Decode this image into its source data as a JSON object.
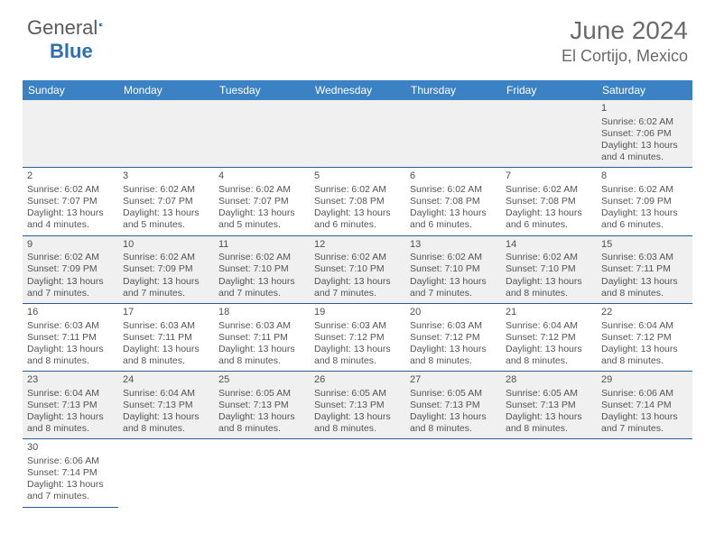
{
  "brand": {
    "part1": "General",
    "part2": "Blue"
  },
  "title": "June 2024",
  "location": "El Cortijo, Mexico",
  "colors": {
    "header_bg": "#3b82c4",
    "header_text": "#ffffff",
    "row_alt_bg": "#f0f0f0",
    "row_border": "#2a5a9a",
    "body_text": "#555555",
    "title_text": "#6a6a6a"
  },
  "weekdays": [
    "Sunday",
    "Monday",
    "Tuesday",
    "Wednesday",
    "Thursday",
    "Friday",
    "Saturday"
  ],
  "days": [
    {
      "n": 1,
      "sr": "6:02 AM",
      "ss": "7:06 PM",
      "dl": "13 hours and 4 minutes."
    },
    {
      "n": 2,
      "sr": "6:02 AM",
      "ss": "7:07 PM",
      "dl": "13 hours and 4 minutes."
    },
    {
      "n": 3,
      "sr": "6:02 AM",
      "ss": "7:07 PM",
      "dl": "13 hours and 5 minutes."
    },
    {
      "n": 4,
      "sr": "6:02 AM",
      "ss": "7:07 PM",
      "dl": "13 hours and 5 minutes."
    },
    {
      "n": 5,
      "sr": "6:02 AM",
      "ss": "7:08 PM",
      "dl": "13 hours and 6 minutes."
    },
    {
      "n": 6,
      "sr": "6:02 AM",
      "ss": "7:08 PM",
      "dl": "13 hours and 6 minutes."
    },
    {
      "n": 7,
      "sr": "6:02 AM",
      "ss": "7:08 PM",
      "dl": "13 hours and 6 minutes."
    },
    {
      "n": 8,
      "sr": "6:02 AM",
      "ss": "7:09 PM",
      "dl": "13 hours and 6 minutes."
    },
    {
      "n": 9,
      "sr": "6:02 AM",
      "ss": "7:09 PM",
      "dl": "13 hours and 7 minutes."
    },
    {
      "n": 10,
      "sr": "6:02 AM",
      "ss": "7:09 PM",
      "dl": "13 hours and 7 minutes."
    },
    {
      "n": 11,
      "sr": "6:02 AM",
      "ss": "7:10 PM",
      "dl": "13 hours and 7 minutes."
    },
    {
      "n": 12,
      "sr": "6:02 AM",
      "ss": "7:10 PM",
      "dl": "13 hours and 7 minutes."
    },
    {
      "n": 13,
      "sr": "6:02 AM",
      "ss": "7:10 PM",
      "dl": "13 hours and 7 minutes."
    },
    {
      "n": 14,
      "sr": "6:02 AM",
      "ss": "7:10 PM",
      "dl": "13 hours and 8 minutes."
    },
    {
      "n": 15,
      "sr": "6:03 AM",
      "ss": "7:11 PM",
      "dl": "13 hours and 8 minutes."
    },
    {
      "n": 16,
      "sr": "6:03 AM",
      "ss": "7:11 PM",
      "dl": "13 hours and 8 minutes."
    },
    {
      "n": 17,
      "sr": "6:03 AM",
      "ss": "7:11 PM",
      "dl": "13 hours and 8 minutes."
    },
    {
      "n": 18,
      "sr": "6:03 AM",
      "ss": "7:11 PM",
      "dl": "13 hours and 8 minutes."
    },
    {
      "n": 19,
      "sr": "6:03 AM",
      "ss": "7:12 PM",
      "dl": "13 hours and 8 minutes."
    },
    {
      "n": 20,
      "sr": "6:03 AM",
      "ss": "7:12 PM",
      "dl": "13 hours and 8 minutes."
    },
    {
      "n": 21,
      "sr": "6:04 AM",
      "ss": "7:12 PM",
      "dl": "13 hours and 8 minutes."
    },
    {
      "n": 22,
      "sr": "6:04 AM",
      "ss": "7:12 PM",
      "dl": "13 hours and 8 minutes."
    },
    {
      "n": 23,
      "sr": "6:04 AM",
      "ss": "7:13 PM",
      "dl": "13 hours and 8 minutes."
    },
    {
      "n": 24,
      "sr": "6:04 AM",
      "ss": "7:13 PM",
      "dl": "13 hours and 8 minutes."
    },
    {
      "n": 25,
      "sr": "6:05 AM",
      "ss": "7:13 PM",
      "dl": "13 hours and 8 minutes."
    },
    {
      "n": 26,
      "sr": "6:05 AM",
      "ss": "7:13 PM",
      "dl": "13 hours and 8 minutes."
    },
    {
      "n": 27,
      "sr": "6:05 AM",
      "ss": "7:13 PM",
      "dl": "13 hours and 8 minutes."
    },
    {
      "n": 28,
      "sr": "6:05 AM",
      "ss": "7:13 PM",
      "dl": "13 hours and 8 minutes."
    },
    {
      "n": 29,
      "sr": "6:06 AM",
      "ss": "7:14 PM",
      "dl": "13 hours and 7 minutes."
    },
    {
      "n": 30,
      "sr": "6:06 AM",
      "ss": "7:14 PM",
      "dl": "13 hours and 7 minutes."
    }
  ],
  "labels": {
    "sunrise": "Sunrise:",
    "sunset": "Sunset:",
    "daylight": "Daylight:"
  },
  "layout": {
    "first_weekday_index": 6,
    "rows": 6,
    "cols": 7
  }
}
